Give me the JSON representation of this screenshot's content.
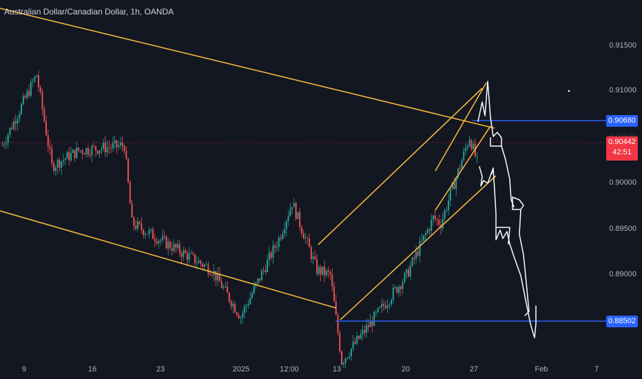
{
  "header": {
    "symbol_title": "Australian Dollar/Canadian Dollar, 1h, OANDA"
  },
  "price_axis": {
    "ticks": [
      "0.91500",
      "0.91000",
      "0.90000",
      "0.89500",
      "0.89000"
    ],
    "label_upper_partial": "0.90500"
  },
  "time_axis": {
    "ticks": [
      "9",
      "16",
      "23",
      "2025",
      "12:00",
      "13",
      "20",
      "27",
      "Feb",
      "7"
    ]
  },
  "markers": {
    "resistance_level": {
      "value": "0.90680",
      "color": "#2962ff"
    },
    "support_level": {
      "value": "0.88502",
      "color": "#2962ff"
    },
    "last_price": {
      "value": "0.90442",
      "countdown": "42:51",
      "color": "#f23645"
    }
  },
  "colors": {
    "background": "#131722",
    "up_candle": "#26a69a",
    "down_candle": "#ef5350",
    "trendline": "#f5b83d",
    "drawing": "#ffffff",
    "horizontal_line": "#2962ff"
  },
  "chart_data": {
    "type": "candlestick",
    "symbol": "AUDCAD",
    "interval": "1h",
    "ylim": [
      0.8835,
      0.92
    ],
    "close_path_anchors": [
      {
        "x": "Jan 9",
        "y": 0.906
      },
      {
        "x": "Jan 10",
        "y": 0.9128
      },
      {
        "x": "Jan 13",
        "y": 0.904
      },
      {
        "x": "Jan 16",
        "y": 0.9055
      },
      {
        "x": "Jan 21",
        "y": 0.906
      },
      {
        "x": "Jan 22",
        "y": 0.8985
      },
      {
        "x": "Jan 29",
        "y": 0.894
      },
      {
        "x": "Jan 31",
        "y": 0.8895
      },
      {
        "x": "2025",
        "y": 0.897
      },
      {
        "x": "12:00",
        "y": 0.9005
      },
      {
        "x": "Jan 8 (2025)",
        "y": 0.894
      },
      {
        "x": "Jan 12",
        "y": 0.8935
      },
      {
        "x": "Jan 13",
        "y": 0.8852
      },
      {
        "x": "Jan 20",
        "y": 0.8935
      },
      {
        "x": "Jan 22",
        "y": 0.899
      },
      {
        "x": "Jan 24",
        "y": 0.8985
      },
      {
        "x": "Jan 27",
        "y": 0.9068
      },
      {
        "x": "Jan 28",
        "y": 0.9044
      }
    ]
  }
}
